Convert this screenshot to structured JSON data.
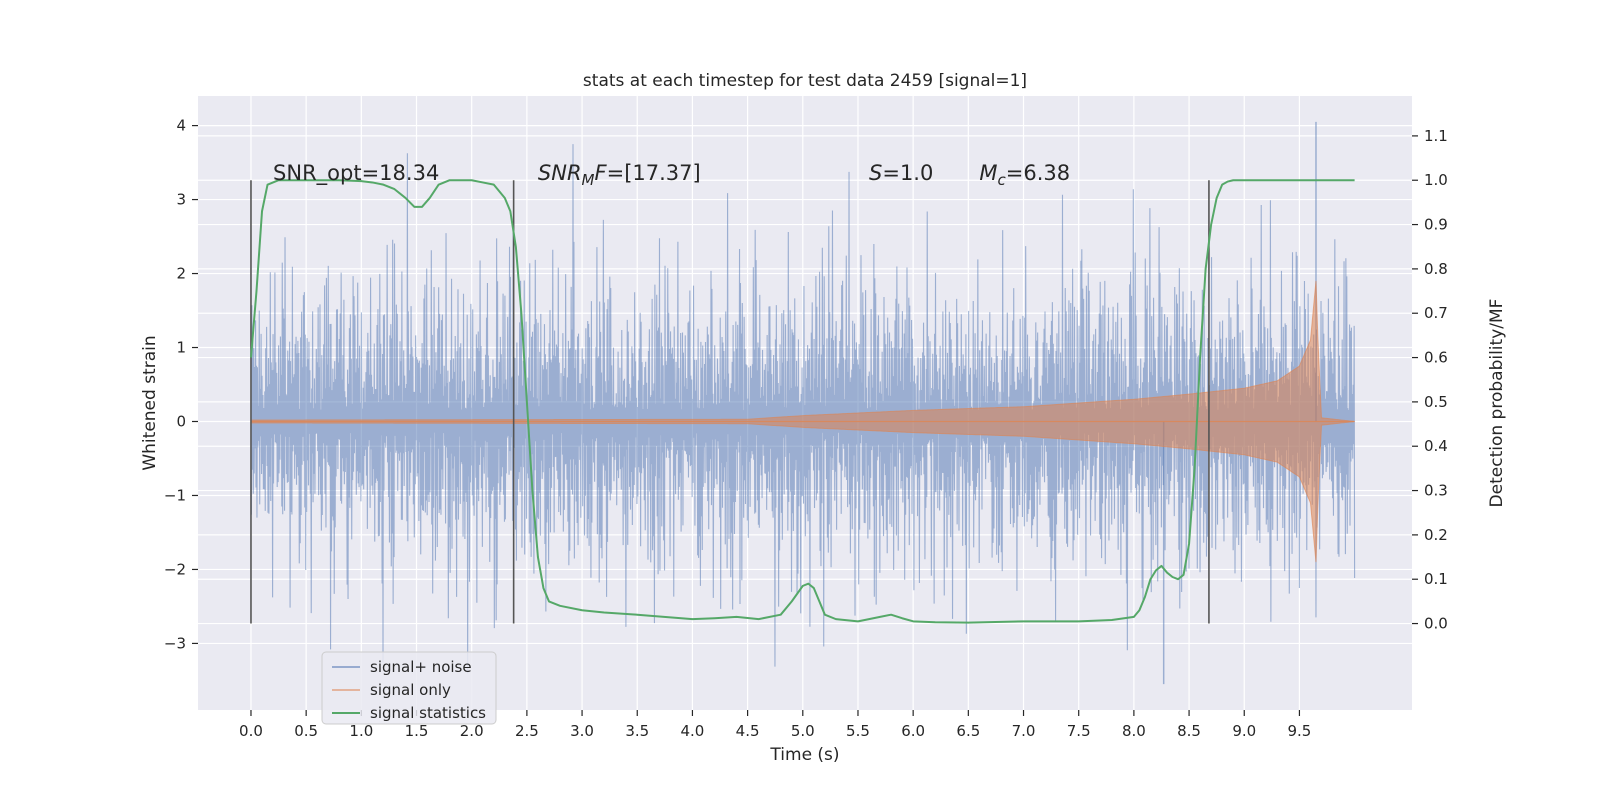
{
  "chart_data": {
    "type": "line",
    "title": "stats at each timestep for test data 2459 [signal=1]",
    "xlabel": "Time (s)",
    "ylabel_left": "Whitened strain",
    "ylabel_right": "Detection probability/MF",
    "xlim": [
      -0.48,
      10.52
    ],
    "ylim_left": [
      -3.9,
      4.4
    ],
    "ylim_right": [
      -0.195,
      1.19
    ],
    "x_ticks": [
      "0.0",
      "0.5",
      "1.0",
      "1.5",
      "2.0",
      "2.5",
      "3.0",
      "3.5",
      "4.0",
      "4.5",
      "5.0",
      "5.5",
      "6.0",
      "6.5",
      "7.0",
      "7.5",
      "8.0",
      "8.5",
      "9.0",
      "9.5"
    ],
    "x_tick_values": [
      0.0,
      0.5,
      1.0,
      1.5,
      2.0,
      2.5,
      3.0,
      3.5,
      4.0,
      4.5,
      5.0,
      5.5,
      6.0,
      6.5,
      7.0,
      7.5,
      8.0,
      8.5,
      9.0,
      9.5
    ],
    "y_ticks_left": [
      "4",
      "3",
      "2",
      "1",
      "0",
      "−1",
      "−2",
      "−3"
    ],
    "y_tick_values_left": [
      4,
      3,
      2,
      1,
      0,
      -1,
      -2,
      -3
    ],
    "y_ticks_right": [
      "1.1",
      "1.0",
      "0.9",
      "0.8",
      "0.7",
      "0.6",
      "0.5",
      "0.4",
      "0.3",
      "0.2",
      "0.1",
      "0.0"
    ],
    "y_tick_values_right": [
      1.1,
      1.0,
      0.9,
      0.8,
      0.7,
      0.6,
      0.5,
      0.4,
      0.3,
      0.2,
      0.1,
      0.0
    ],
    "grid": true,
    "legend_position": "lower-left",
    "colors": {
      "noise": "#4c72b0",
      "signal": "#dd8452",
      "stats": "#55a868",
      "vline": "#555555",
      "background": "#eaeaf2",
      "grid": "#ffffff"
    },
    "series": [
      {
        "name": "signal+ noise",
        "axis": "left",
        "kind": "noise",
        "t_start": 0.0,
        "t_end": 10.0,
        "typical_amplitude": 1.45,
        "max_value": 4.05,
        "min_value": -3.55
      },
      {
        "name": "signal only",
        "axis": "left",
        "kind": "chirp",
        "envelope_t": [
          0.0,
          4.5,
          5.0,
          6.0,
          7.0,
          8.0,
          8.5,
          9.0,
          9.3,
          9.5,
          9.6,
          9.65,
          9.67,
          9.7,
          10.0
        ],
        "envelope_amp": [
          0.02,
          0.03,
          0.08,
          0.15,
          0.2,
          0.3,
          0.37,
          0.45,
          0.55,
          0.75,
          1.1,
          1.9,
          1.0,
          0.05,
          0.0
        ]
      },
      {
        "name": "signal statistics",
        "axis": "right",
        "x": [
          0.0,
          0.05,
          0.1,
          0.15,
          0.25,
          0.4,
          0.6,
          0.8,
          1.0,
          1.1,
          1.2,
          1.3,
          1.4,
          1.48,
          1.55,
          1.62,
          1.7,
          1.8,
          1.9,
          2.0,
          2.1,
          2.2,
          2.3,
          2.35,
          2.4,
          2.45,
          2.5,
          2.55,
          2.6,
          2.65,
          2.7,
          2.8,
          3.0,
          3.2,
          3.5,
          4.0,
          4.2,
          4.4,
          4.6,
          4.8,
          4.9,
          5.0,
          5.05,
          5.1,
          5.15,
          5.2,
          5.3,
          5.5,
          5.7,
          5.8,
          5.9,
          6.0,
          6.2,
          6.5,
          7.0,
          7.5,
          7.8,
          8.0,
          8.05,
          8.1,
          8.15,
          8.2,
          8.25,
          8.3,
          8.35,
          8.4,
          8.45,
          8.5,
          8.55,
          8.6,
          8.65,
          8.7,
          8.75,
          8.8,
          8.85,
          8.9,
          9.0,
          9.2,
          9.5,
          9.7,
          9.9,
          10.0
        ],
        "y": [
          0.6,
          0.75,
          0.93,
          0.99,
          1.0,
          1.0,
          1.0,
          1.0,
          0.998,
          0.995,
          0.99,
          0.98,
          0.96,
          0.94,
          0.94,
          0.96,
          0.99,
          1.0,
          1.0,
          1.0,
          0.995,
          0.99,
          0.96,
          0.93,
          0.85,
          0.7,
          0.5,
          0.3,
          0.15,
          0.08,
          0.05,
          0.04,
          0.03,
          0.025,
          0.02,
          0.01,
          0.012,
          0.015,
          0.01,
          0.02,
          0.05,
          0.085,
          0.09,
          0.08,
          0.05,
          0.02,
          0.01,
          0.005,
          0.015,
          0.02,
          0.012,
          0.005,
          0.003,
          0.002,
          0.005,
          0.005,
          0.008,
          0.015,
          0.03,
          0.06,
          0.1,
          0.12,
          0.13,
          0.115,
          0.105,
          0.1,
          0.11,
          0.18,
          0.35,
          0.6,
          0.8,
          0.9,
          0.96,
          0.99,
          0.997,
          1.0,
          1.0,
          1.0,
          1.0,
          1.0,
          1.0,
          1.0
        ]
      }
    ],
    "vlines": {
      "x": [
        0.0,
        2.38,
        8.68
      ],
      "y_range_right": [
        0.0,
        1.0
      ]
    },
    "annotations": [
      {
        "id": "snr-opt",
        "x": 0.2,
        "y_right": 1.0,
        "parts": [
          {
            "text": "SNR_opt=18.34",
            "style": "normal"
          }
        ]
      },
      {
        "id": "snr-mf",
        "x": 2.6,
        "y_right": 1.0,
        "parts": [
          {
            "text": "SNR",
            "style": "italic"
          },
          {
            "text": "M",
            "style": "italic-sub"
          },
          {
            "text": "F",
            "style": "italic"
          },
          {
            "text": "=[17.37]",
            "style": "normal"
          }
        ]
      },
      {
        "id": "s-value",
        "x": 5.6,
        "y_right": 1.0,
        "parts": [
          {
            "text": "S",
            "style": "italic"
          },
          {
            "text": "=1.0",
            "style": "normal"
          }
        ]
      },
      {
        "id": "mc-value",
        "x": 6.6,
        "y_right": 1.0,
        "parts": [
          {
            "text": "M",
            "style": "italic"
          },
          {
            "text": "c",
            "style": "italic-sub"
          },
          {
            "text": "=6.38",
            "style": "normal"
          }
        ]
      }
    ],
    "legend": [
      {
        "label": "signal+ noise",
        "color": "#4c72b0"
      },
      {
        "label": "signal only",
        "color": "#dd8452"
      },
      {
        "label": "signal statistics",
        "color": "#55a868"
      }
    ]
  }
}
